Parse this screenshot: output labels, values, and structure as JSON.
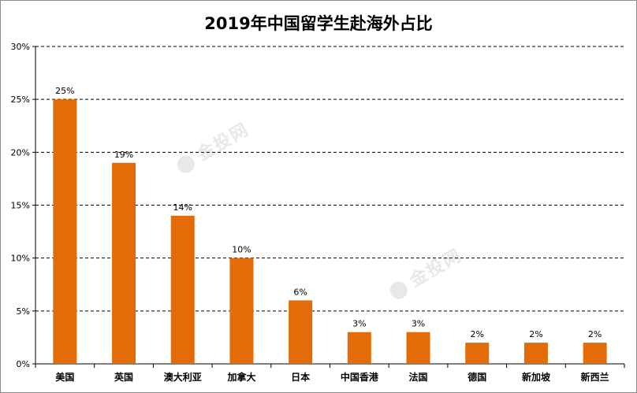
{
  "chart_data": {
    "type": "bar",
    "title": "2019年中国留学生赴海外占比",
    "categories": [
      "美国",
      "英国",
      "澳大利亚",
      "加拿大",
      "日本",
      "中国香港",
      "法国",
      "德国",
      "新加坡",
      "新西兰"
    ],
    "values": [
      25,
      19,
      14,
      10,
      6,
      3,
      3,
      2,
      2,
      2
    ],
    "data_labels": [
      "25%",
      "19%",
      "14%",
      "10%",
      "6%",
      "3%",
      "3%",
      "2%",
      "2%",
      "2%"
    ],
    "ylim": [
      0,
      30
    ],
    "yticks": [
      0,
      5,
      10,
      15,
      20,
      25,
      30
    ],
    "ytick_labels": [
      "0%",
      "5%",
      "10%",
      "15%",
      "20%",
      "25%",
      "30%"
    ],
    "bar_color": "#E36C09",
    "grid": "dashed-horizontal",
    "legend": "none"
  },
  "watermark": {
    "text": "金投网"
  }
}
